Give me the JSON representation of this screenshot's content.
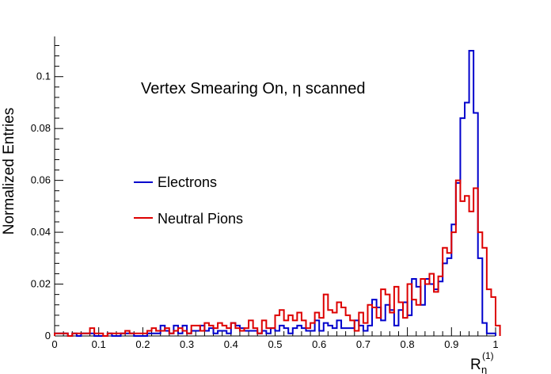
{
  "chart_data": {
    "type": "line",
    "style": "step-histogram",
    "title": "",
    "annotation": "Vertex Smearing On,  η scanned",
    "xlabel": "R",
    "xlabel_sub": "η",
    "xlabel_sup": "(1)",
    "ylabel": "Normalized Entries",
    "xlim": [
      0,
      1
    ],
    "ylim": [
      0,
      0.1155
    ],
    "grid": false,
    "legend_position": "middle-left",
    "x_ticks": [
      "0",
      "0.1",
      "0.2",
      "0.3",
      "0.4",
      "0.5",
      "0.6",
      "0.7",
      "0.8",
      "0.9",
      "1"
    ],
    "y_ticks": [
      "0",
      "0.02",
      "0.04",
      "0.06",
      "0.08",
      "0.1"
    ],
    "x_tick_values": [
      0,
      0.1,
      0.2,
      0.3,
      0.4,
      0.5,
      0.6,
      0.7,
      0.8,
      0.9,
      1
    ],
    "y_tick_values": [
      0,
      0.02,
      0.04,
      0.06,
      0.08,
      0.1
    ],
    "bin_width": 0.01,
    "series": [
      {
        "name": "Electrons",
        "color": "#0000cc",
        "values": [
          0.001,
          0.001,
          0.001,
          0,
          0.001,
          0,
          0.001,
          0.001,
          0.001,
          0,
          0,
          0,
          0.001,
          0,
          0,
          0.001,
          0.001,
          0.001,
          0,
          0,
          0,
          0.001,
          0.001,
          0.001,
          0.004,
          0.002,
          0.001,
          0.004,
          0.001,
          0.004,
          0.001,
          0.002,
          0.002,
          0.004,
          0.002,
          0.003,
          0.001,
          0.002,
          0.002,
          0.001,
          0.005,
          0.004,
          0.003,
          0.002,
          0.002,
          0.002,
          0.001,
          0.002,
          0.001,
          0.003,
          0.002,
          0.004,
          0.003,
          0.001,
          0.003,
          0.004,
          0.003,
          0.002,
          0.002,
          0.006,
          0.002,
          0.005,
          0.004,
          0.003,
          0.006,
          0.003,
          0.003,
          0.003,
          0.006,
          0.004,
          0.002,
          0.004,
          0.014,
          0.011,
          0.006,
          0.012,
          0.01,
          0.004,
          0.01,
          0.013,
          0.008,
          0.022,
          0.019,
          0.012,
          0.022,
          0.02,
          0.018,
          0.021,
          0.028,
          0.03,
          0.043,
          0.059,
          0.084,
          0.09,
          0.11,
          0.086,
          0.03,
          0.005,
          0.001,
          0.001
        ]
      },
      {
        "name": "Neutral Pions",
        "color": "#dd0000",
        "values": [
          0.001,
          0.001,
          0.001,
          0,
          0.001,
          0.001,
          0.001,
          0.001,
          0.003,
          0.001,
          0.001,
          0,
          0.001,
          0.001,
          0.001,
          0.001,
          0.002,
          0.001,
          0.001,
          0.001,
          0.001,
          0.002,
          0.003,
          0.002,
          0.002,
          0.003,
          0.001,
          0.002,
          0.003,
          0.002,
          0.001,
          0.004,
          0.004,
          0.002,
          0.005,
          0.004,
          0.003,
          0.005,
          0.004,
          0.003,
          0.005,
          0.003,
          0.002,
          0.003,
          0.006,
          0.003,
          0.001,
          0.006,
          0.003,
          0.003,
          0.008,
          0.01,
          0.006,
          0.008,
          0.006,
          0.009,
          0.006,
          0.003,
          0.005,
          0.009,
          0.007,
          0.016,
          0.01,
          0.009,
          0.013,
          0.011,
          0.008,
          0.006,
          0.002,
          0.009,
          0.005,
          0.012,
          0.011,
          0.007,
          0.018,
          0.016,
          0.009,
          0.019,
          0.013,
          0.007,
          0.02,
          0.014,
          0.012,
          0.022,
          0.02,
          0.024,
          0.017,
          0.023,
          0.034,
          0.032,
          0.04,
          0.06,
          0.052,
          0.054,
          0.048,
          0.057,
          0.04,
          0.034,
          0.018,
          0.015,
          0.004
        ]
      }
    ]
  }
}
